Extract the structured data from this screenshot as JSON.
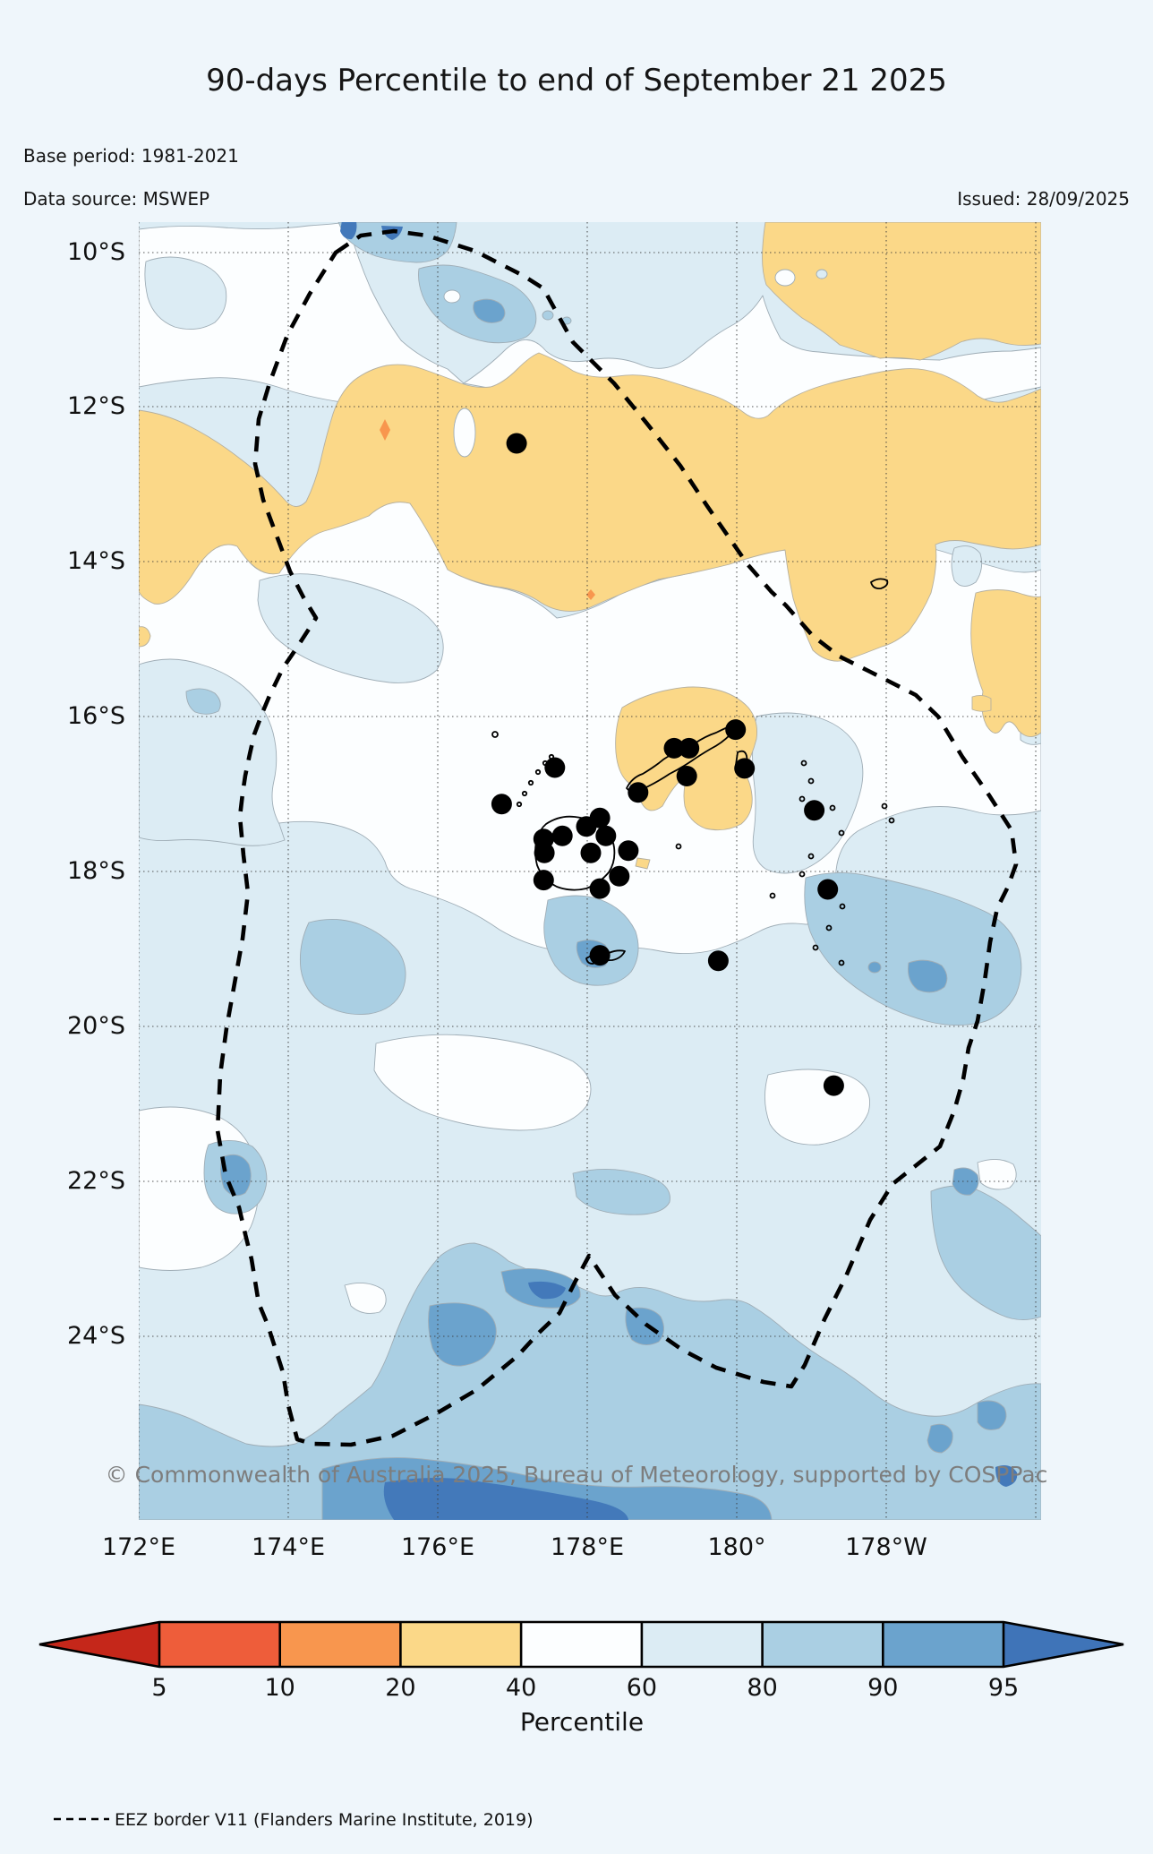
{
  "title": "90-days Percentile to end of September 21 2025",
  "meta": {
    "base_period": "Base period: 1981-2021",
    "data_source": "Data source: MSWEP",
    "issued": "Issued: 28/09/2025"
  },
  "map": {
    "watermark": "© Commonwealth of Australia 2025, Bureau of Meteorology, supported by COSPPac"
  },
  "legend": {
    "eez_label": "EEZ border V11 (Flanders Marine Institute, 2019)"
  },
  "chart_data": {
    "type": "heatmap",
    "title": "90-days Percentile to end of September 21 2025",
    "subtitle_lines": [
      "Base period: 1981-2021",
      "Data source: MSWEP",
      "Issued: 28/09/2025"
    ],
    "projection_extent": {
      "lon_west": 172.0,
      "lon_east": 184.0,
      "lat_north": -9.6,
      "lat_south": -26.4
    },
    "xticks": [
      "172°E",
      "174°E",
      "176°E",
      "178°E",
      "180°",
      "178°W"
    ],
    "yticks": [
      "10°S",
      "12°S",
      "14°S",
      "16°S",
      "18°S",
      "20°S",
      "22°S",
      "24°S"
    ],
    "grid": true,
    "colorbar": {
      "label": "Percentile",
      "ticks": [
        "5",
        "10",
        "20",
        "40",
        "60",
        "80",
        "90",
        "95"
      ],
      "colors": [
        "#c5271a",
        "#ee5d3a",
        "#f8964e",
        "#fbd888",
        "#fcfeff",
        "#dcecf4",
        "#aacfe3",
        "#6ba3cd",
        "#3f74b8"
      ],
      "extend": "both"
    },
    "legend_note": "EEZ border V11 (Flanders Marine Institute, 2019)",
    "stations_lonlat": [
      [
        177.04,
        12.46
      ],
      [
        179.96,
        16.15
      ],
      [
        179.14,
        16.39
      ],
      [
        179.34,
        16.39
      ],
      [
        180.08,
        16.65
      ],
      [
        179.31,
        16.75
      ],
      [
        178.66,
        16.96
      ],
      [
        177.55,
        16.64
      ],
      [
        176.84,
        17.11
      ],
      [
        181.01,
        17.19
      ],
      [
        178.15,
        17.29
      ],
      [
        177.97,
        17.4
      ],
      [
        178.23,
        17.52
      ],
      [
        177.65,
        17.52
      ],
      [
        177.4,
        17.56
      ],
      [
        177.41,
        17.74
      ],
      [
        178.03,
        17.74
      ],
      [
        178.53,
        17.71
      ],
      [
        178.41,
        18.04
      ],
      [
        177.4,
        18.09
      ],
      [
        178.15,
        18.2
      ],
      [
        181.19,
        18.21
      ],
      [
        178.15,
        19.06
      ],
      [
        179.73,
        19.13
      ],
      [
        181.27,
        20.74
      ]
    ]
  }
}
